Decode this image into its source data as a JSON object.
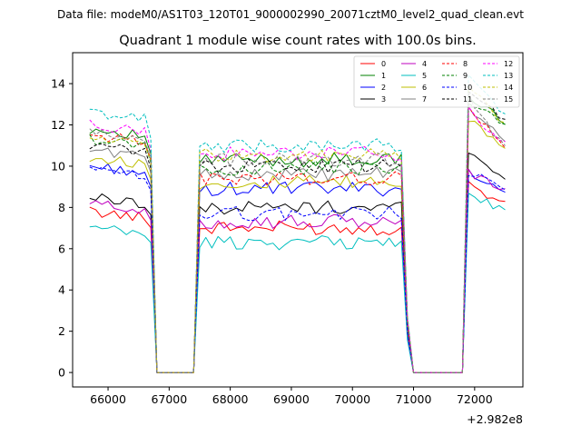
{
  "chart_data": {
    "type": "line",
    "suptitle": "Data file: modeM0/AS1T03_120T01_9000002990_20071cztM0_level2_quad_clean.evt",
    "title": "Quadrant 1 module wise count rates with 100.0s bins.",
    "xlabel": "",
    "ylabel": "",
    "x_offset_label": "+2.982e8",
    "xlim": [
      65420,
      72790
    ],
    "ylim": [
      -0.7,
      15.5
    ],
    "xticks": [
      66000,
      67000,
      68000,
      69000,
      70000,
      71000,
      72000
    ],
    "xtick_labels": [
      "66000",
      "67000",
      "68000",
      "69000",
      "70000",
      "71000",
      "72000"
    ],
    "yticks": [
      0,
      2,
      4,
      6,
      8,
      10,
      12,
      14
    ],
    "ytick_labels": [
      "0",
      "2",
      "4",
      "6",
      "8",
      "10",
      "12",
      "14"
    ],
    "grid": false,
    "legend_position": "top-right",
    "legend_columns": 4,
    "profile": {
      "x": [
        65700,
        65800,
        65900,
        66000,
        66100,
        66200,
        66300,
        66400,
        66500,
        66600,
        66700,
        66800,
        66900,
        67000,
        67100,
        67200,
        67300,
        67400,
        67500,
        67600,
        67700,
        67800,
        67900,
        68000,
        68100,
        68200,
        68300,
        68400,
        68500,
        68600,
        68700,
        68800,
        68900,
        69000,
        69100,
        69200,
        69300,
        69400,
        69500,
        69600,
        69700,
        69800,
        69900,
        70000,
        70100,
        70200,
        70300,
        70400,
        70500,
        70600,
        70700,
        70800,
        70900,
        71000,
        71100,
        71200,
        71300,
        71400,
        71500,
        71600,
        71700,
        71800,
        71900,
        72000,
        72100,
        72200,
        72300,
        72400,
        72500
      ],
      "gap_start_x": 66800,
      "gap_end_x": 67400,
      "gap_start_x2": 70900,
      "gap_end_x2": 71800
    },
    "series": [
      {
        "name": "0",
        "color": "#ff0000",
        "dashed": false,
        "level": 7.0,
        "start": 7.8,
        "end": 8.1,
        "peak": 9.3
      },
      {
        "name": "1",
        "color": "#008000",
        "dashed": false,
        "level": 10.3,
        "start": 11.8,
        "end": 12.2,
        "peak": 13.5
      },
      {
        "name": "2",
        "color": "#0000ff",
        "dashed": false,
        "level": 8.9,
        "start": 10.0,
        "end": 8.6,
        "peak": 9.9
      },
      {
        "name": "3",
        "color": "#000000",
        "dashed": false,
        "level": 8.0,
        "start": 8.5,
        "end": 9.5,
        "peak": 10.8
      },
      {
        "name": "4",
        "color": "#bf00bf",
        "dashed": false,
        "level": 7.3,
        "start": 8.2,
        "end": 8.9,
        "peak": 9.8
      },
      {
        "name": "5",
        "color": "#00bfbf",
        "dashed": false,
        "level": 6.3,
        "start": 7.0,
        "end": 7.8,
        "peak": 8.8
      },
      {
        "name": "6",
        "color": "#bfbf00",
        "dashed": false,
        "level": 9.2,
        "start": 10.4,
        "end": 11.0,
        "peak": 12.5
      },
      {
        "name": "7",
        "color": "#808080",
        "dashed": false,
        "level": 9.6,
        "start": 10.8,
        "end": 11.2,
        "peak": 13.0
      },
      {
        "name": "8",
        "color": "#ff0000",
        "dashed": true,
        "level": 9.4,
        "start": 11.5,
        "end": 10.8,
        "peak": 13.2
      },
      {
        "name": "9",
        "color": "#008000",
        "dashed": true,
        "level": 9.9,
        "start": 11.3,
        "end": 12.0,
        "peak": 13.4
      },
      {
        "name": "10",
        "color": "#0000ff",
        "dashed": true,
        "level": 7.7,
        "start": 9.8,
        "end": 8.9,
        "peak": 9.8
      },
      {
        "name": "11",
        "color": "#000000",
        "dashed": true,
        "level": 10.0,
        "start": 11.0,
        "end": 12.3,
        "peak": 13.7
      },
      {
        "name": "12",
        "color": "#ff00ff",
        "dashed": true,
        "level": 10.6,
        "start": 12.0,
        "end": 11.0,
        "peak": 13.0
      },
      {
        "name": "13",
        "color": "#00bfbf",
        "dashed": true,
        "level": 11.0,
        "start": 12.6,
        "end": 12.4,
        "peak": 14.8
      },
      {
        "name": "14",
        "color": "#bfbf00",
        "dashed": true,
        "level": 10.5,
        "start": 11.4,
        "end": 12.0,
        "peak": 14.2
      },
      {
        "name": "15",
        "color": "#808080",
        "dashed": true,
        "level": 10.3,
        "start": 11.6,
        "end": 10.8,
        "peak": 13.8
      }
    ]
  }
}
